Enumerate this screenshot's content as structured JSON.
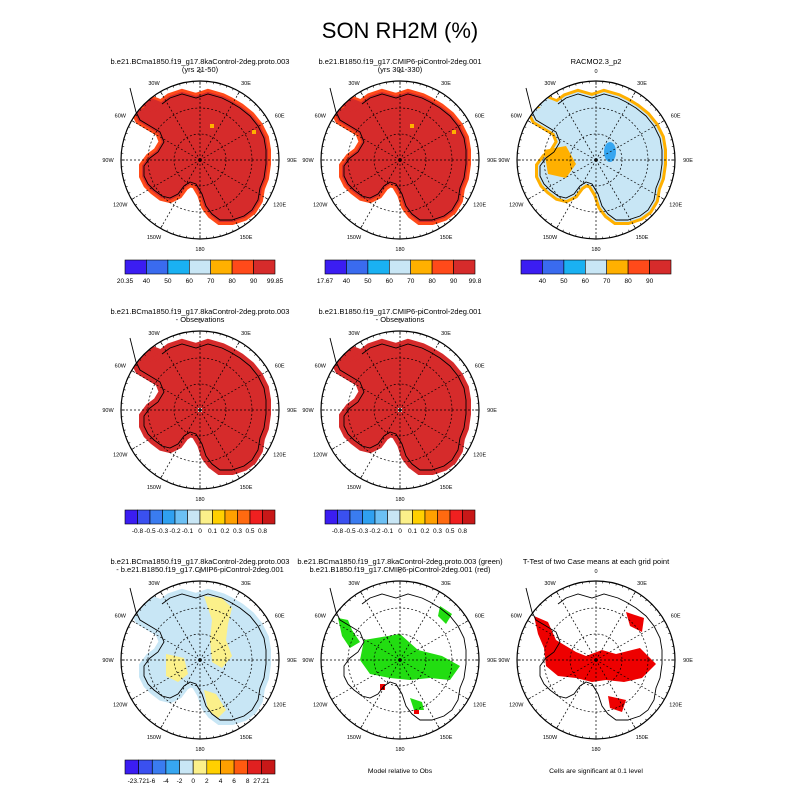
{
  "title": "SON RH2M (%)",
  "lon_labels": [
    "0",
    "30E",
    "60E",
    "90E",
    "120E",
    "150E",
    "180",
    "150W",
    "120W",
    "90W",
    "60W",
    "30W"
  ],
  "colors": {
    "deep_red": "#d62b2b",
    "red": "#e03020",
    "orange_red": "#ff4a1a",
    "orange": "#ffb000",
    "light_blue": "#c8e6f5",
    "blue": "#37a6f0",
    "yellow": "#fbf08a",
    "green": "#22dd11",
    "sig_red": "#ee0000"
  },
  "chart_data": [
    {
      "type": "heatmap",
      "title": "b.e21.BCma1850.f19_g17.8kaControl-2deg.proto.003",
      "subtitle": "(yrs 21-50)",
      "colorbar": {
        "labels": [
          "20.35",
          "40",
          "50",
          "60",
          "70",
          "80",
          "90",
          "99.85"
        ],
        "colors": [
          "#3b1df2",
          "#3a6bef",
          "#1ab1f2",
          "#c8e6f5",
          "#ffb000",
          "#ff4a1a",
          "#d62b2b"
        ]
      }
    },
    {
      "type": "heatmap",
      "title": "b.e21.B1850.f19_g17.CMIP6-piControl-2deg.001",
      "subtitle": "(yrs 301-330)",
      "colorbar": {
        "labels": [
          "17.67",
          "40",
          "50",
          "60",
          "70",
          "80",
          "90",
          "99.8"
        ],
        "colors": [
          "#3b1df2",
          "#3a6bef",
          "#1ab1f2",
          "#c8e6f5",
          "#ffb000",
          "#ff4a1a",
          "#d62b2b"
        ]
      }
    },
    {
      "type": "heatmap",
      "title": "RACMO2.3_p2",
      "subtitle": "",
      "colorbar": {
        "labels": [
          "40",
          "50",
          "60",
          "70",
          "80",
          "90"
        ],
        "colors": [
          "#3b1df2",
          "#3a6bef",
          "#1ab1f2",
          "#c8e6f5",
          "#ffb000",
          "#ff4a1a",
          "#d62b2b"
        ]
      }
    },
    {
      "type": "heatmap",
      "title": "b.e21.BCma1850.f19_g17.8kaControl-2deg.proto.003",
      "subtitle": "- Observations",
      "colorbar": {
        "labels": [
          "-0.8",
          "-0.5",
          "-0.3",
          "-0.2",
          "-0.1",
          "0",
          "0.1",
          "0.2",
          "0.3",
          "0.5",
          "0.8"
        ],
        "colors": [
          "#3b1df2",
          "#3a50f0",
          "#3a7cf0",
          "#2fa0f0",
          "#6cc0f4",
          "#c8e6f5",
          "#fbf08a",
          "#ffd000",
          "#ffa000",
          "#ff6a10",
          "#f02020",
          "#c81818"
        ]
      }
    },
    {
      "type": "heatmap",
      "title": "b.e21.B1850.f19_g17.CMIP6-piControl-2deg.001",
      "subtitle": "- Observations",
      "colorbar": {
        "labels": [
          "-0.8",
          "-0.5",
          "-0.3",
          "-0.2",
          "-0.1",
          "0",
          "0.1",
          "0.2",
          "0.3",
          "0.5",
          "0.8"
        ],
        "colors": [
          "#3b1df2",
          "#3a50f0",
          "#3a7cf0",
          "#2fa0f0",
          "#6cc0f4",
          "#c8e6f5",
          "#fbf08a",
          "#ffd000",
          "#ffa000",
          "#ff6a10",
          "#f02020",
          "#c81818"
        ]
      }
    },
    {
      "type": "heatmap",
      "title": "b.e21.BCma1850.f19_g17.8kaControl-2deg.proto.003",
      "subtitle": "- b.e21.B1850.f19_g17.CMIP6-piControl-2deg.001",
      "colorbar": {
        "labels": [
          "-23.721",
          "-6",
          "-4",
          "-2",
          "0",
          "2",
          "4",
          "6",
          "8",
          "27.21"
        ],
        "colors": [
          "#3b1df2",
          "#3a50f0",
          "#3a7cf0",
          "#37a6f0",
          "#c8e6f5",
          "#fbf08a",
          "#ffd000",
          "#ffa000",
          "#ff5a10",
          "#e02020",
          "#c81818"
        ]
      }
    },
    {
      "type": "heatmap",
      "title": "b.e21.BCma1850.f19_g17.8kaControl-2deg.proto.003 (green)",
      "subtitle": "b.e21.B1850.f19_g17.CMIP6-piControl-2deg.001 (red)",
      "footnote": "Model relative to Obs"
    },
    {
      "type": "heatmap",
      "title": "T-Test of two Case means at each grid point",
      "subtitle": "",
      "footnote": "Cells are significant at 0.1 level"
    }
  ]
}
